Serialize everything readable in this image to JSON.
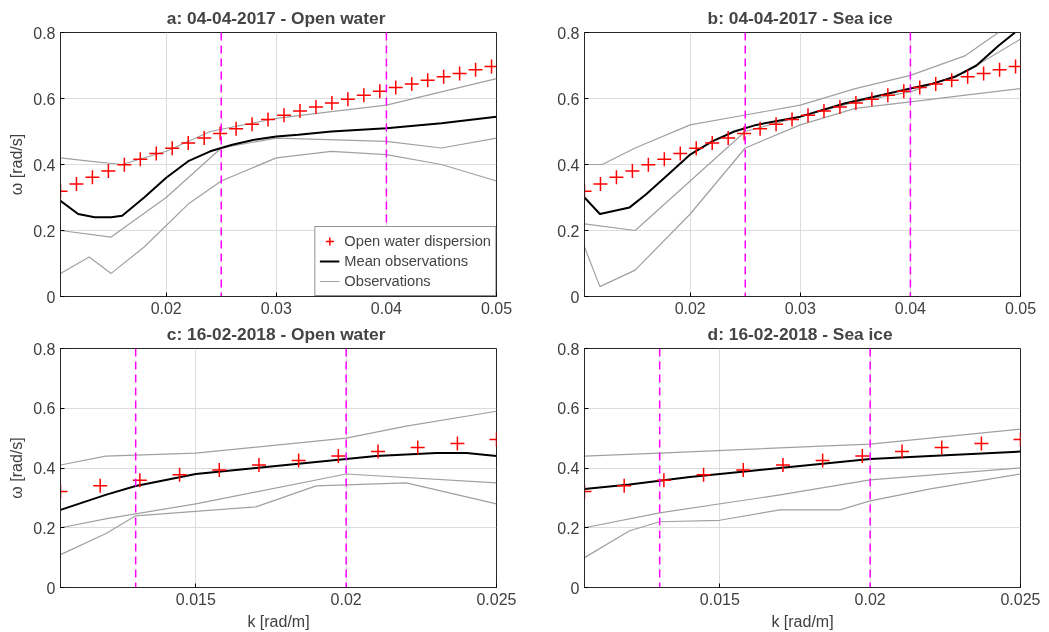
{
  "chart_data": [
    {
      "type": "line",
      "title": "a:  04-04-2017 - Open water",
      "ylabel": "ω [rad/s]",
      "xlim": [
        0.0104,
        0.05
      ],
      "ylim": [
        0,
        0.8
      ],
      "xticks": [
        0.02,
        0.03,
        0.04,
        0.05
      ],
      "yticks": [
        0,
        0.2,
        0.4,
        0.6,
        0.8
      ],
      "grid": true,
      "legend": "bottom right",
      "ref_lines": [
        {
          "axis": "x",
          "value": 0.025,
          "color": "#ff00ff",
          "line_style": "dashed"
        },
        {
          "axis": "x",
          "value": 0.04,
          "color": "#ff00ff",
          "line_style": "dashed"
        }
      ],
      "series": [
        {
          "name": "Observations",
          "color": "#a0a0a0",
          "x": [
            0.0104,
            0.013,
            0.016,
            0.02,
            0.024,
            0.03,
            0.035,
            0.04,
            0.045,
            0.05
          ],
          "values": [
            0.42,
            0.41,
            0.4,
            0.44,
            0.5,
            0.54,
            0.56,
            0.58,
            0.62,
            0.66
          ]
        },
        {
          "color": "#a0a0a0",
          "x": [
            0.0104,
            0.013,
            0.015,
            0.018,
            0.022,
            0.025,
            0.03,
            0.035,
            0.04,
            0.045,
            0.05
          ],
          "values": [
            0.07,
            0.12,
            0.07,
            0.15,
            0.28,
            0.35,
            0.42,
            0.44,
            0.43,
            0.4,
            0.35
          ]
        },
        {
          "color": "#a0a0a0",
          "x": [
            0.0104,
            0.015,
            0.02,
            0.025,
            0.03,
            0.04,
            0.045,
            0.05
          ],
          "values": [
            0.2,
            0.18,
            0.3,
            0.45,
            0.48,
            0.47,
            0.45,
            0.48
          ]
        },
        {
          "name": "Mean observations",
          "color": "#000000",
          "x": [
            0.0104,
            0.012,
            0.0135,
            0.015,
            0.016,
            0.018,
            0.02,
            0.022,
            0.024,
            0.026,
            0.028,
            0.03,
            0.032,
            0.035,
            0.04,
            0.045,
            0.05
          ],
          "values": [
            0.29,
            0.25,
            0.24,
            0.24,
            0.245,
            0.3,
            0.36,
            0.41,
            0.44,
            0.46,
            0.475,
            0.485,
            0.49,
            0.5,
            0.51,
            0.525,
            0.545
          ]
        },
        {
          "name": "Open water dispersion",
          "type": "scatter",
          "marker": "cross",
          "color": "#ff0000",
          "x": [
            0.0104,
            0.01185,
            0.0133,
            0.01475,
            0.0162,
            0.01765,
            0.0191,
            0.02055,
            0.022,
            0.02345,
            0.0249,
            0.02635,
            0.0278,
            0.02925,
            0.0307,
            0.03215,
            0.0336,
            0.03505,
            0.0365,
            0.03795,
            0.0394,
            0.04085,
            0.0423,
            0.04375,
            0.0452,
            0.04665,
            0.0481,
            0.04955
          ],
          "values": [
            0.319,
            0.341,
            0.361,
            0.38,
            0.399,
            0.416,
            0.433,
            0.449,
            0.465,
            0.48,
            0.494,
            0.508,
            0.522,
            0.536,
            0.549,
            0.562,
            0.574,
            0.586,
            0.598,
            0.61,
            0.622,
            0.633,
            0.644,
            0.655,
            0.666,
            0.676,
            0.687,
            0.697
          ]
        }
      ]
    },
    {
      "type": "line",
      "title": "b:  04-04-2017 - Sea ice",
      "xlim": [
        0.0104,
        0.05
      ],
      "ylim": [
        0,
        0.8
      ],
      "xticks": [
        0.02,
        0.03,
        0.04,
        0.05
      ],
      "yticks": [
        0,
        0.2,
        0.4,
        0.6,
        0.8
      ],
      "grid": true,
      "ref_lines": [
        {
          "axis": "x",
          "value": 0.025,
          "color": "#ff00ff",
          "line_style": "dashed"
        },
        {
          "axis": "x",
          "value": 0.04,
          "color": "#ff00ff",
          "line_style": "dashed"
        }
      ],
      "series": [
        {
          "color": "#a0a0a0",
          "x": [
            0.0104,
            0.012,
            0.015,
            0.02,
            0.025,
            0.03,
            0.035,
            0.04,
            0.045,
            0.048
          ],
          "values": [
            0.4,
            0.4,
            0.45,
            0.52,
            0.55,
            0.58,
            0.63,
            0.67,
            0.73,
            0.8
          ]
        },
        {
          "color": "#a0a0a0",
          "x": [
            0.0104,
            0.0118,
            0.015,
            0.02,
            0.025,
            0.03,
            0.035,
            0.04,
            0.045,
            0.05
          ],
          "values": [
            0.15,
            0.03,
            0.08,
            0.25,
            0.45,
            0.52,
            0.57,
            0.59,
            0.61,
            0.63
          ]
        },
        {
          "color": "#a0a0a0",
          "x": [
            0.0104,
            0.015,
            0.02,
            0.025,
            0.035,
            0.04,
            0.045,
            0.05
          ],
          "values": [
            0.22,
            0.2,
            0.35,
            0.5,
            0.59,
            0.62,
            0.68,
            0.78
          ]
        },
        {
          "color": "#000000",
          "x": [
            0.0104,
            0.0118,
            0.0145,
            0.016,
            0.018,
            0.02,
            0.022,
            0.024,
            0.026,
            0.03,
            0.034,
            0.038,
            0.04,
            0.042,
            0.044,
            0.046,
            0.048,
            0.0495
          ],
          "values": [
            0.3,
            0.25,
            0.27,
            0.31,
            0.37,
            0.43,
            0.47,
            0.5,
            0.52,
            0.545,
            0.585,
            0.615,
            0.63,
            0.645,
            0.665,
            0.7,
            0.76,
            0.8
          ]
        },
        {
          "type": "scatter",
          "marker": "cross",
          "color": "#ff0000",
          "x": [
            0.0104,
            0.01185,
            0.0133,
            0.01475,
            0.0162,
            0.01765,
            0.0191,
            0.02055,
            0.022,
            0.02345,
            0.0249,
            0.02635,
            0.0278,
            0.02925,
            0.0307,
            0.03215,
            0.0336,
            0.03505,
            0.0365,
            0.03795,
            0.0394,
            0.04085,
            0.0423,
            0.04375,
            0.0452,
            0.04665,
            0.0481,
            0.04955
          ],
          "values": [
            0.319,
            0.341,
            0.361,
            0.38,
            0.399,
            0.416,
            0.433,
            0.449,
            0.465,
            0.48,
            0.494,
            0.508,
            0.522,
            0.536,
            0.549,
            0.562,
            0.574,
            0.586,
            0.598,
            0.61,
            0.622,
            0.633,
            0.644,
            0.655,
            0.666,
            0.676,
            0.687,
            0.697
          ]
        }
      ]
    },
    {
      "type": "line",
      "title": "c:  16-02-2018 - Open water",
      "xlabel": "k [rad/m]",
      "ylabel": "ω [rad/s]",
      "xlim": [
        0.0105,
        0.025
      ],
      "ylim": [
        0,
        0.8
      ],
      "xticks": [
        0.015,
        0.02,
        0.025
      ],
      "yticks": [
        0,
        0.2,
        0.4,
        0.6,
        0.8
      ],
      "grid": true,
      "ref_lines": [
        {
          "axis": "x",
          "value": 0.013,
          "color": "#ff00ff",
          "line_style": "dashed"
        },
        {
          "axis": "x",
          "value": 0.02,
          "color": "#ff00ff",
          "line_style": "dashed"
        }
      ],
      "series": [
        {
          "color": "#a0a0a0",
          "x": [
            0.0105,
            0.012,
            0.015,
            0.02,
            0.022,
            0.025
          ],
          "values": [
            0.41,
            0.44,
            0.45,
            0.5,
            0.54,
            0.59
          ]
        },
        {
          "color": "#a0a0a0",
          "x": [
            0.0105,
            0.012,
            0.013,
            0.017,
            0.019,
            0.022,
            0.025
          ],
          "values": [
            0.11,
            0.18,
            0.24,
            0.27,
            0.34,
            0.35,
            0.28
          ]
        },
        {
          "color": "#a0a0a0",
          "x": [
            0.0105,
            0.012,
            0.015,
            0.02,
            0.025
          ],
          "values": [
            0.2,
            0.23,
            0.28,
            0.38,
            0.35
          ]
        },
        {
          "color": "#000000",
          "x": [
            0.0105,
            0.012,
            0.013,
            0.015,
            0.017,
            0.019,
            0.021,
            0.023,
            0.024,
            0.025
          ],
          "values": [
            0.26,
            0.31,
            0.34,
            0.38,
            0.4,
            0.42,
            0.44,
            0.45,
            0.45,
            0.44
          ]
        },
        {
          "type": "scatter",
          "marker": "cross",
          "color": "#ff0000",
          "x": [
            0.0105,
            0.01182,
            0.01314,
            0.01446,
            0.01578,
            0.0171,
            0.01842,
            0.01974,
            0.02106,
            0.02238,
            0.0237,
            0.025
          ],
          "values": [
            0.321,
            0.341,
            0.359,
            0.377,
            0.393,
            0.41,
            0.425,
            0.44,
            0.455,
            0.469,
            0.482,
            0.495
          ]
        }
      ]
    },
    {
      "type": "line",
      "title": "d:  16-02-2018 - Sea ice",
      "xlabel": "k [rad/m]",
      "xlim": [
        0.0105,
        0.025
      ],
      "ylim": [
        0,
        0.8
      ],
      "xticks": [
        0.015,
        0.02,
        0.025
      ],
      "yticks": [
        0,
        0.2,
        0.4,
        0.6,
        0.8
      ],
      "grid": true,
      "ref_lines": [
        {
          "axis": "x",
          "value": 0.013,
          "color": "#ff00ff",
          "line_style": "dashed"
        },
        {
          "axis": "x",
          "value": 0.02,
          "color": "#ff00ff",
          "line_style": "dashed"
        }
      ],
      "series": [
        {
          "color": "#a0a0a0",
          "x": [
            0.0105,
            0.013,
            0.02,
            0.025
          ],
          "values": [
            0.44,
            0.45,
            0.48,
            0.53
          ]
        },
        {
          "color": "#a0a0a0",
          "x": [
            0.0105,
            0.012,
            0.013,
            0.015,
            0.017,
            0.019,
            0.02,
            0.022,
            0.025
          ],
          "values": [
            0.1,
            0.19,
            0.22,
            0.225,
            0.26,
            0.26,
            0.29,
            0.33,
            0.38
          ]
        },
        {
          "color": "#a0a0a0",
          "x": [
            0.0105,
            0.013,
            0.017,
            0.02,
            0.025
          ],
          "values": [
            0.2,
            0.25,
            0.31,
            0.36,
            0.4
          ]
        },
        {
          "color": "#000000",
          "x": [
            0.0105,
            0.012,
            0.014,
            0.016,
            0.018,
            0.02,
            0.022,
            0.025
          ],
          "values": [
            0.33,
            0.345,
            0.37,
            0.39,
            0.41,
            0.43,
            0.44,
            0.455
          ]
        },
        {
          "type": "scatter",
          "marker": "cross",
          "color": "#ff0000",
          "x": [
            0.0105,
            0.01182,
            0.01314,
            0.01446,
            0.01578,
            0.0171,
            0.01842,
            0.01974,
            0.02106,
            0.02238,
            0.0237,
            0.025
          ],
          "values": [
            0.321,
            0.341,
            0.359,
            0.377,
            0.393,
            0.41,
            0.425,
            0.44,
            0.455,
            0.469,
            0.482,
            0.495
          ]
        }
      ]
    }
  ]
}
